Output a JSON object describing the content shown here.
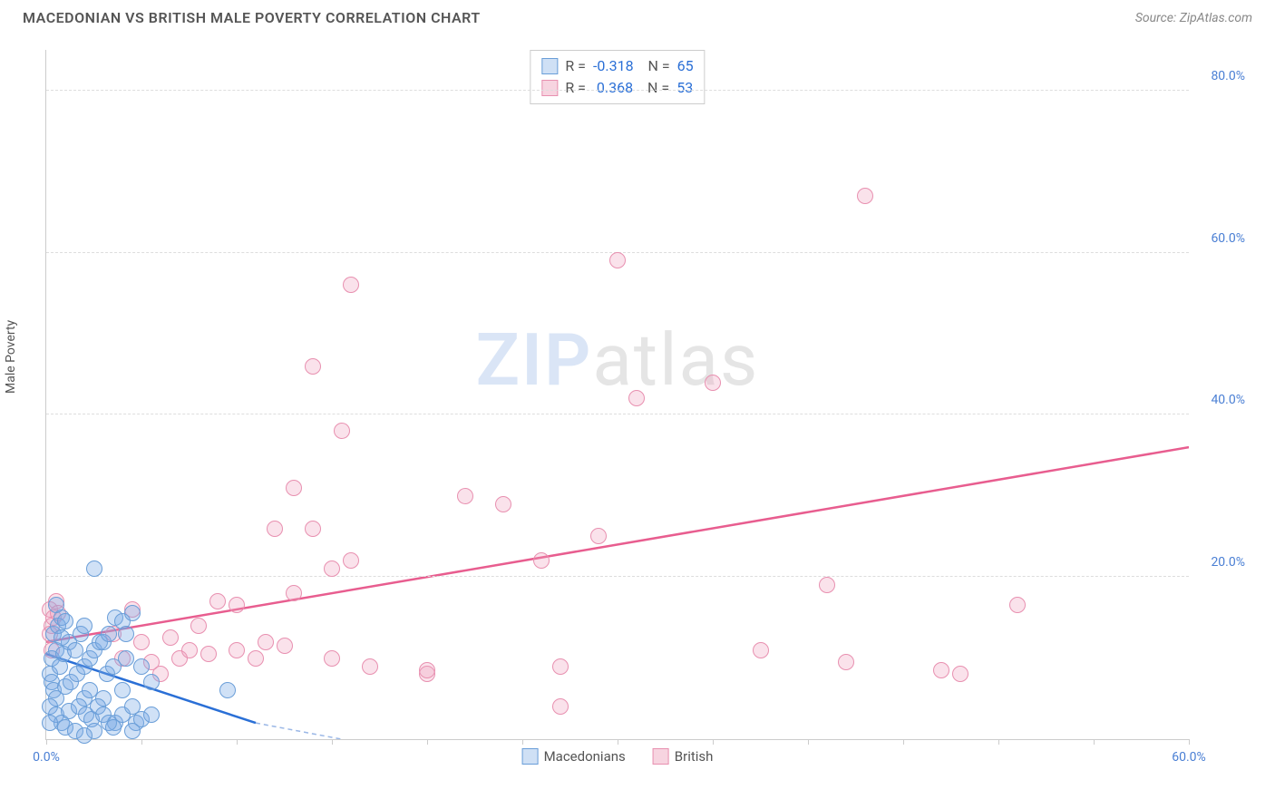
{
  "header": {
    "title": "MACEDONIAN VS BRITISH MALE POVERTY CORRELATION CHART",
    "source": "Source: ZipAtlas.com"
  },
  "chart": {
    "type": "scatter",
    "ylabel": "Male Poverty",
    "background_color": "#ffffff",
    "grid_color": "#dddddd",
    "axis_color": "#cccccc",
    "tick_label_color": "#4a7fd4",
    "label_fontsize": 14,
    "title_fontsize": 16,
    "xlim": [
      0,
      60
    ],
    "ylim": [
      0,
      85
    ],
    "xtick_step": 5,
    "xtick_labels": {
      "0": "0.0%",
      "60": "60.0%"
    },
    "ytick_step": 20,
    "ytick_labels": {
      "20": "20.0%",
      "40": "40.0%",
      "60": "60.0%",
      "80": "80.0%"
    },
    "marker_radius": 8,
    "marker_border_width": 1.5,
    "series": {
      "macedonians": {
        "label": "Macedonians",
        "fill_color": "rgba(120,170,230,0.35)",
        "border_color": "#6a9ed8",
        "swatch_fill": "#cfe0f5",
        "swatch_border": "#6a9ed8",
        "R": "-0.318",
        "N": "65",
        "trend_color": "#2a6fd6",
        "trend_dash_color": "#9ab7e6",
        "trend": {
          "x1": 0,
          "y1": 10.5,
          "x2": 11,
          "y2": 2
        },
        "trend_dash": {
          "x1": 11,
          "y1": 2,
          "x2": 15.5,
          "y2": 0
        },
        "points": [
          [
            0.2,
            8
          ],
          [
            0.3,
            10
          ],
          [
            0.5,
            11
          ],
          [
            0.4,
            13
          ],
          [
            0.6,
            14
          ],
          [
            0.8,
            15
          ],
          [
            1.0,
            14.5
          ],
          [
            0.3,
            7
          ],
          [
            0.7,
            9
          ],
          [
            0.9,
            10.5
          ],
          [
            1.2,
            12
          ],
          [
            1.5,
            11
          ],
          [
            1.8,
            13
          ],
          [
            0.4,
            6
          ],
          [
            0.5,
            5
          ],
          [
            1.0,
            6.5
          ],
          [
            1.3,
            7
          ],
          [
            1.6,
            8
          ],
          [
            2.0,
            9
          ],
          [
            2.3,
            10
          ],
          [
            2.5,
            11
          ],
          [
            2.8,
            12
          ],
          [
            2.0,
            5
          ],
          [
            2.0,
            14
          ],
          [
            3.2,
            8
          ],
          [
            3.5,
            9
          ],
          [
            2.3,
            6
          ],
          [
            3.0,
            12
          ],
          [
            3.3,
            13
          ],
          [
            3.6,
            15
          ],
          [
            4.0,
            14.5
          ],
          [
            4.5,
            15.5
          ],
          [
            4.2,
            13
          ],
          [
            4.2,
            10
          ],
          [
            3.0,
            5
          ],
          [
            0.2,
            4
          ],
          [
            0.5,
            3
          ],
          [
            0.8,
            2
          ],
          [
            1.2,
            3.5
          ],
          [
            3.6,
            2
          ],
          [
            1.7,
            4
          ],
          [
            2.1,
            3
          ],
          [
            2.4,
            2.5
          ],
          [
            2.7,
            4
          ],
          [
            3.0,
            3
          ],
          [
            3.3,
            2
          ],
          [
            4.7,
            2
          ],
          [
            4.0,
            3
          ],
          [
            4.5,
            4
          ],
          [
            5.0,
            2.5
          ],
          [
            5.5,
            3
          ],
          [
            2.5,
            1
          ],
          [
            3.5,
            1.5
          ],
          [
            4.5,
            1
          ],
          [
            0.5,
            16.5
          ],
          [
            0.2,
            2
          ],
          [
            1.0,
            1.5
          ],
          [
            1.5,
            1
          ],
          [
            2.0,
            0.5
          ],
          [
            5.5,
            7
          ],
          [
            5.0,
            9
          ],
          [
            4.0,
            6
          ],
          [
            0.8,
            12.5
          ],
          [
            2.5,
            21
          ],
          [
            9.5,
            6
          ]
        ]
      },
      "british": {
        "label": "British",
        "fill_color": "rgba(240,160,190,0.3)",
        "border_color": "#e890b0",
        "swatch_fill": "#f7d4e0",
        "swatch_border": "#e890b0",
        "R": "0.368",
        "N": "53",
        "trend_color": "#e85d8f",
        "trend": {
          "x1": 0,
          "y1": 12,
          "x2": 60,
          "y2": 36
        },
        "points": [
          [
            0.2,
            16
          ],
          [
            0.3,
            14
          ],
          [
            0.5,
            17
          ],
          [
            0.4,
            15
          ],
          [
            0.2,
            13
          ],
          [
            0.6,
            15.5
          ],
          [
            0.3,
            11
          ],
          [
            7,
            10
          ],
          [
            5,
            12
          ],
          [
            6,
            8
          ],
          [
            8,
            14
          ],
          [
            4.5,
            16
          ],
          [
            7.5,
            11
          ],
          [
            8.5,
            10.5
          ],
          [
            9,
            17
          ],
          [
            10,
            11
          ],
          [
            11,
            10
          ],
          [
            11.5,
            12
          ],
          [
            12,
            26
          ],
          [
            12.5,
            11.5
          ],
          [
            13,
            18
          ],
          [
            14,
            26
          ],
          [
            13,
            31
          ],
          [
            14,
            46
          ],
          [
            15,
            21
          ],
          [
            15,
            10
          ],
          [
            16,
            22
          ],
          [
            15.5,
            38
          ],
          [
            17,
            9
          ],
          [
            16,
            56
          ],
          [
            20,
            8
          ],
          [
            20,
            8.5
          ],
          [
            22,
            30
          ],
          [
            24,
            29
          ],
          [
            26,
            22
          ],
          [
            27,
            9
          ],
          [
            27,
            4
          ],
          [
            29,
            25
          ],
          [
            31,
            42
          ],
          [
            30,
            59
          ],
          [
            35,
            44
          ],
          [
            37.5,
            11
          ],
          [
            41,
            19
          ],
          [
            42,
            9.5
          ],
          [
            43,
            67
          ],
          [
            47,
            8.5
          ],
          [
            48,
            8
          ],
          [
            51,
            16.5
          ],
          [
            10,
            16.5
          ],
          [
            6.5,
            12.5
          ],
          [
            3.5,
            13
          ],
          [
            4,
            10
          ],
          [
            5.5,
            9.5
          ]
        ]
      }
    },
    "watermark": {
      "zip": "ZIP",
      "atlas": "atlas"
    }
  }
}
